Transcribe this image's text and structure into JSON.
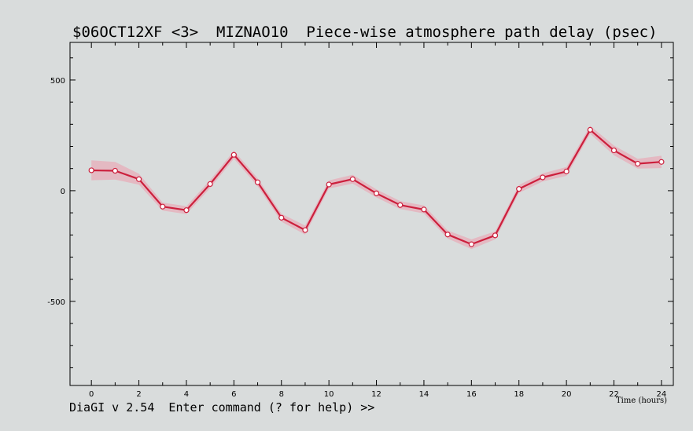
{
  "header": {
    "title": "$06OCT12XF <3>  MIZNAO10  Piece-wise atmosphere path delay (psec)"
  },
  "footer": {
    "command_prompt": "DiaGI v 2.54  Enter command (? for help) >>"
  },
  "colors": {
    "background": "#d9dcdc",
    "line": "#cc1f3c",
    "band": "#e8a9b6",
    "marker_fill": "#ffffff"
  },
  "chart_data": {
    "type": "line",
    "title": "$06OCT12XF <3>  MIZNAO10  Piece-wise atmosphere path delay (psec)",
    "xlabel": "Time (hours)",
    "ylabel": "",
    "xlim": [
      -0.9,
      24.5
    ],
    "ylim": [
      -880,
      670
    ],
    "xticks": [
      0,
      2,
      4,
      6,
      8,
      10,
      12,
      14,
      16,
      18,
      20,
      22,
      24
    ],
    "yticks": [
      500,
      0,
      -500
    ],
    "grid": false,
    "x": [
      0,
      1,
      2,
      3,
      4,
      5,
      6,
      7,
      8,
      9,
      10,
      11,
      12,
      13,
      14,
      15,
      16,
      17,
      18,
      19,
      20,
      21,
      22,
      23,
      24
    ],
    "series": [
      {
        "values": [
          92,
          90,
          52,
          -72,
          -88,
          30,
          162,
          38,
          -122,
          -178,
          28,
          52,
          -12,
          -65,
          -85,
          -198,
          -242,
          -202,
          8,
          60,
          87,
          275,
          182,
          122,
          130
        ],
        "error": [
          45,
          40,
          25,
          18,
          18,
          18,
          18,
          18,
          18,
          20,
          18,
          20,
          18,
          18,
          18,
          18,
          22,
          18,
          18,
          18,
          20,
          18,
          22,
          22,
          28
        ]
      }
    ]
  }
}
